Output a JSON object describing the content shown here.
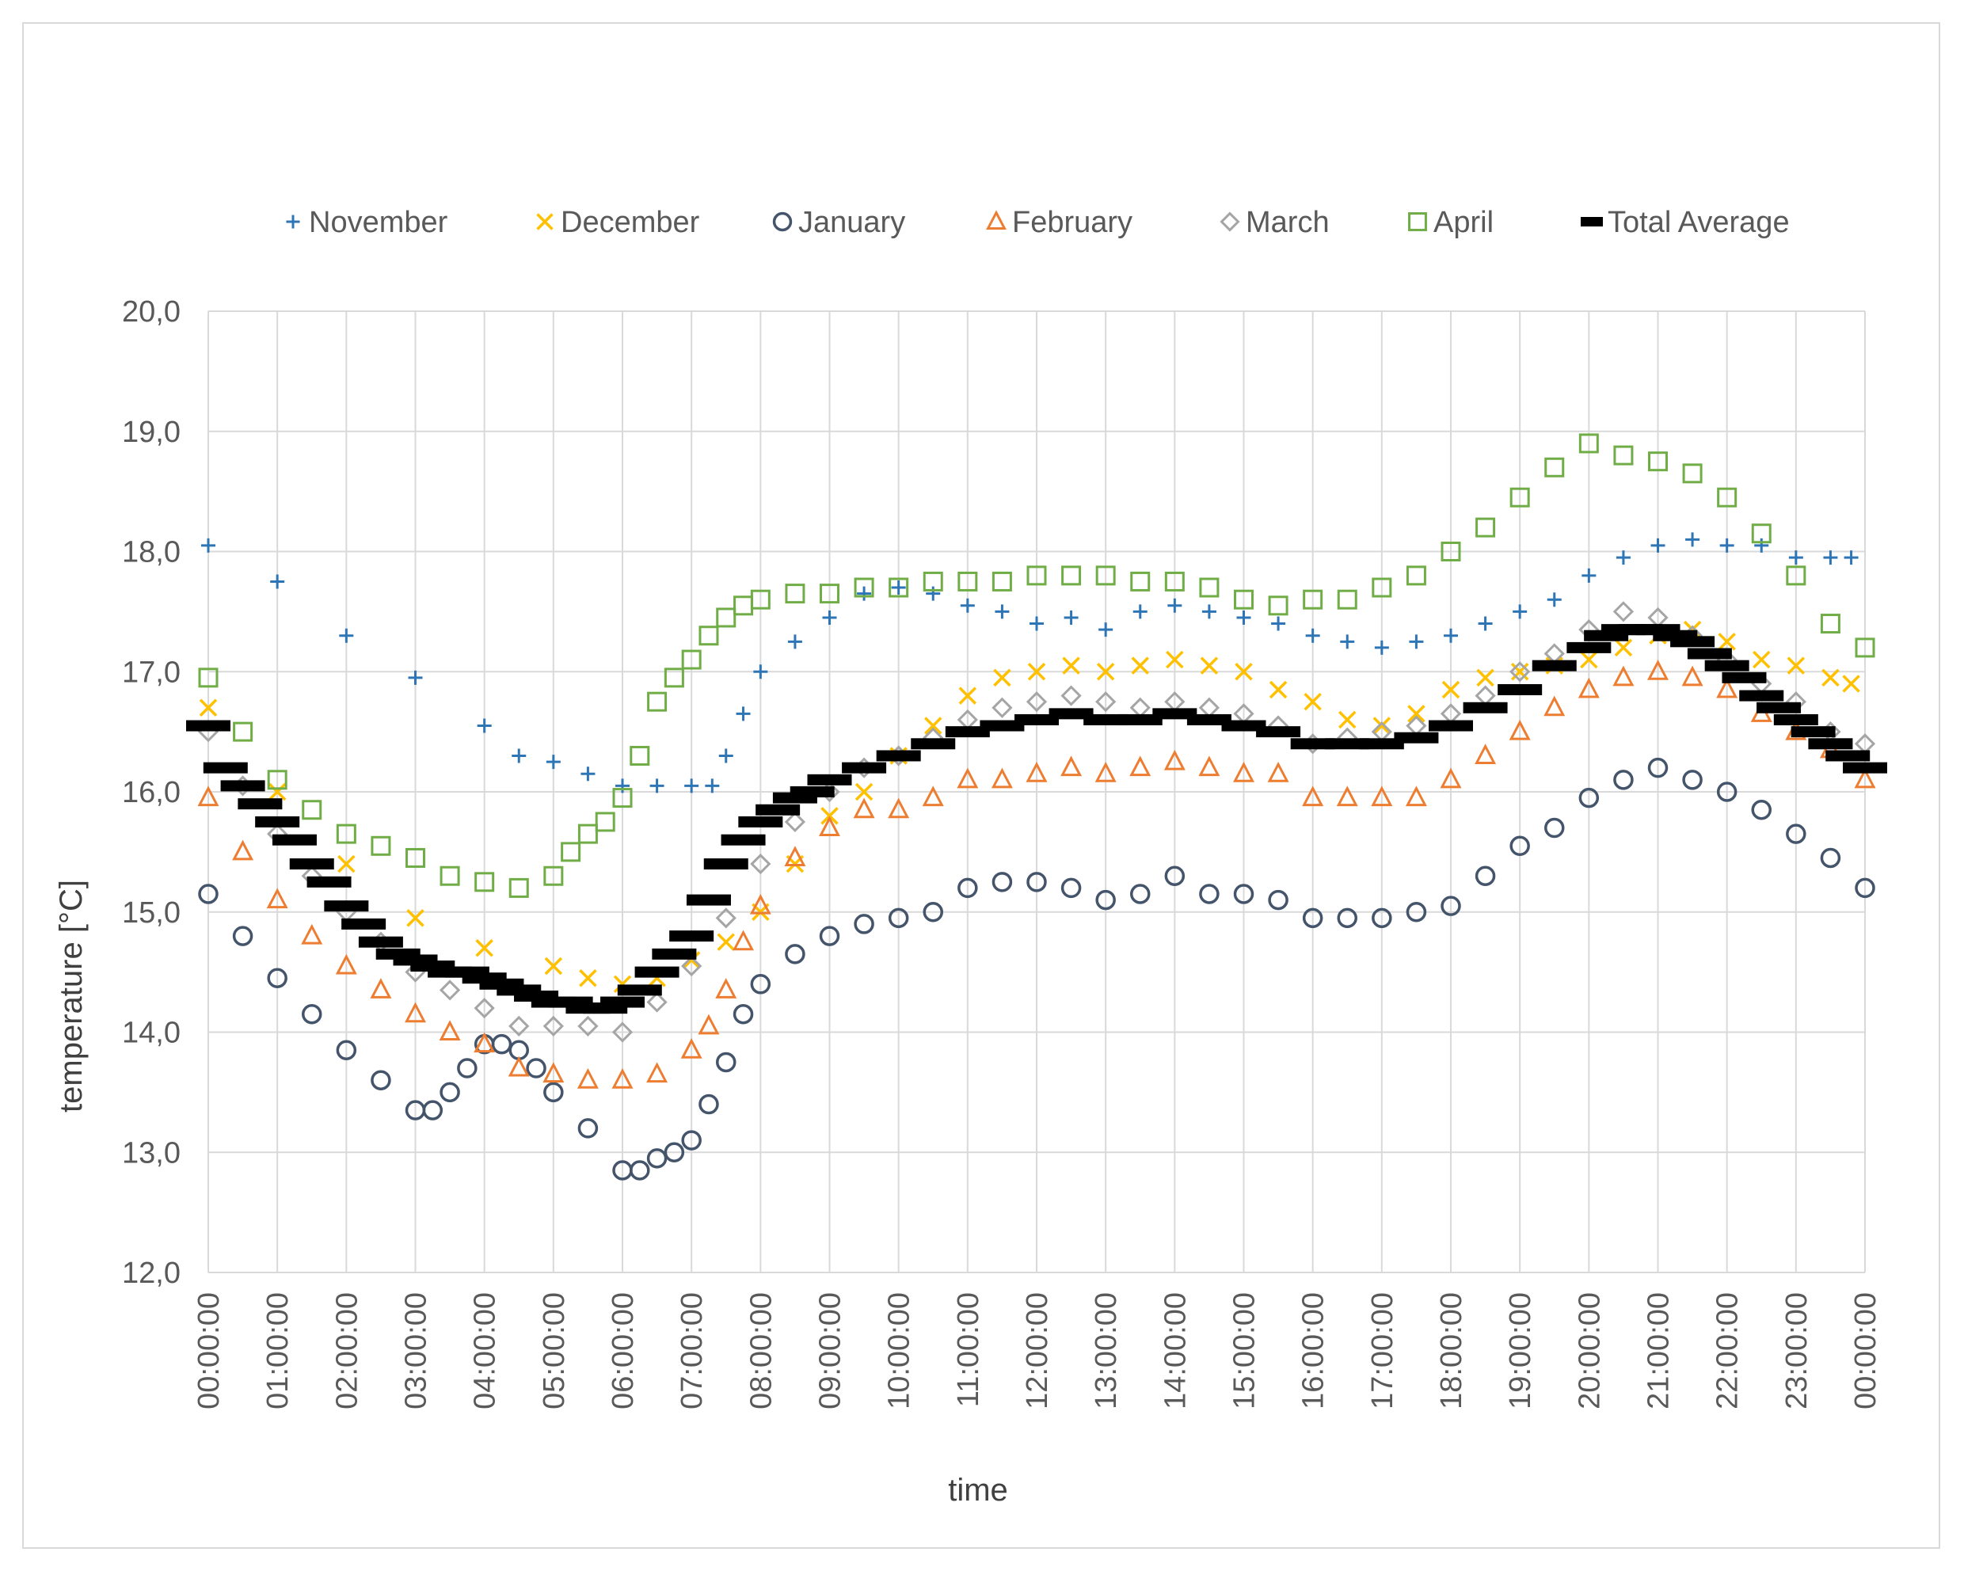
{
  "chart_data": {
    "type": "scatter",
    "title": "",
    "xlabel": "time",
    "ylabel": "temperature [°C]",
    "ylim": [
      12.0,
      20.0
    ],
    "ytick_step": 1.0,
    "xlim_hours": [
      0,
      24
    ],
    "x_tick_labels": [
      "00:00:00",
      "01:00:00",
      "02:00:00",
      "03:00:00",
      "04:00:00",
      "05:00:00",
      "06:00:00",
      "07:00:00",
      "08:00:00",
      "09:00:00",
      "10:00:00",
      "11:00:00",
      "12:00:00",
      "13:00:00",
      "14:00:00",
      "15:00:00",
      "16:00:00",
      "17:00:00",
      "18:00:00",
      "19:00:00",
      "20:00:00",
      "21:00:00",
      "22:00:00",
      "23:00:00",
      "00:00:00"
    ],
    "y_tick_labels": [
      "12,0",
      "13,0",
      "14,0",
      "15,0",
      "16,0",
      "17,0",
      "18,0",
      "19,0",
      "20,0"
    ],
    "grid": true,
    "legend_position": "top",
    "series": [
      {
        "name": "November",
        "marker": "plus",
        "color": "#2e75b6",
        "x": [
          0,
          1,
          2,
          3,
          4,
          4.5,
          5,
          5.5,
          6,
          6.5,
          7,
          7.3,
          7.5,
          7.75,
          8,
          8.5,
          9,
          9.5,
          10,
          10.5,
          11,
          11.5,
          12,
          12.5,
          13,
          13.5,
          14,
          14.5,
          15,
          15.5,
          16,
          16.5,
          17,
          17.5,
          18,
          18.5,
          19,
          19.5,
          20,
          20.5,
          21,
          21.5,
          22,
          22.5,
          23,
          23.5,
          23.8
        ],
        "y": [
          18.05,
          17.75,
          17.3,
          16.95,
          16.55,
          16.3,
          16.25,
          16.15,
          16.05,
          16.05,
          16.05,
          16.05,
          16.3,
          16.65,
          17.0,
          17.25,
          17.45,
          17.65,
          17.7,
          17.65,
          17.55,
          17.5,
          17.4,
          17.45,
          17.35,
          17.5,
          17.55,
          17.5,
          17.45,
          17.4,
          17.3,
          17.25,
          17.2,
          17.25,
          17.3,
          17.4,
          17.5,
          17.6,
          17.8,
          17.95,
          18.05,
          18.1,
          18.05,
          18.05,
          17.95,
          17.95,
          17.95
        ]
      },
      {
        "name": "December",
        "marker": "x",
        "color": "#ffc000",
        "x": [
          0,
          1,
          2,
          3,
          4,
          5,
          5.5,
          6,
          6.5,
          7,
          7.5,
          8,
          8.5,
          9,
          9.5,
          10,
          10.5,
          11,
          11.5,
          12,
          12.5,
          13,
          13.5,
          14,
          14.5,
          15,
          15.5,
          16,
          16.5,
          17,
          17.5,
          18,
          18.5,
          19,
          19.5,
          20,
          20.5,
          21,
          21.5,
          22,
          22.5,
          23,
          23.5,
          23.8
        ],
        "y": [
          16.7,
          16.0,
          15.4,
          14.95,
          14.7,
          14.55,
          14.45,
          14.4,
          14.45,
          14.6,
          14.75,
          15.0,
          15.4,
          15.8,
          16.0,
          16.3,
          16.55,
          16.8,
          16.95,
          17.0,
          17.05,
          17.0,
          17.05,
          17.1,
          17.05,
          17.0,
          16.85,
          16.75,
          16.6,
          16.55,
          16.65,
          16.85,
          16.95,
          17.0,
          17.05,
          17.1,
          17.2,
          17.3,
          17.35,
          17.25,
          17.1,
          17.05,
          16.95,
          16.9
        ]
      },
      {
        "name": "January",
        "marker": "circle",
        "color": "#44546a",
        "x": [
          0,
          0.5,
          1,
          1.5,
          2,
          2.5,
          3,
          3.25,
          3.5,
          3.75,
          4,
          4.25,
          4.5,
          4.75,
          5,
          5.5,
          6,
          6.25,
          6.5,
          6.75,
          7,
          7.25,
          7.5,
          7.75,
          8,
          8.5,
          9,
          9.5,
          10,
          10.5,
          11,
          11.5,
          12,
          12.5,
          13,
          13.5,
          14,
          14.5,
          15,
          15.5,
          16,
          16.5,
          17,
          17.5,
          18,
          18.5,
          19,
          19.5,
          20,
          20.5,
          21,
          21.5,
          22,
          22.5,
          23,
          23.5,
          24
        ],
        "y": [
          15.15,
          14.8,
          14.45,
          14.15,
          13.85,
          13.6,
          13.35,
          13.35,
          13.5,
          13.7,
          13.9,
          13.9,
          13.85,
          13.7,
          13.5,
          13.2,
          12.85,
          12.85,
          12.95,
          13.0,
          13.1,
          13.4,
          13.75,
          14.15,
          14.4,
          14.65,
          14.8,
          14.9,
          14.95,
          15.0,
          15.2,
          15.25,
          15.25,
          15.2,
          15.1,
          15.15,
          15.3,
          15.15,
          15.15,
          15.1,
          14.95,
          14.95,
          14.95,
          15.0,
          15.05,
          15.3,
          15.55,
          15.7,
          15.95,
          16.1,
          16.2,
          16.1,
          16.0,
          15.85,
          15.65,
          15.45,
          15.2
        ]
      },
      {
        "name": "February",
        "marker": "triangle",
        "color": "#ed7d31",
        "x": [
          0,
          0.5,
          1,
          1.5,
          2,
          2.5,
          3,
          3.5,
          4,
          4.5,
          5,
          5.5,
          6,
          6.5,
          7,
          7.25,
          7.5,
          7.75,
          8,
          8.5,
          9,
          9.5,
          10,
          10.5,
          11,
          11.5,
          12,
          12.5,
          13,
          13.5,
          14,
          14.5,
          15,
          15.5,
          16,
          16.5,
          17,
          17.5,
          18,
          18.5,
          19,
          19.5,
          20,
          20.5,
          21,
          21.5,
          22,
          22.5,
          23,
          23.5,
          24
        ],
        "y": [
          15.95,
          15.5,
          15.1,
          14.8,
          14.55,
          14.35,
          14.15,
          14.0,
          13.9,
          13.7,
          13.65,
          13.6,
          13.6,
          13.65,
          13.85,
          14.05,
          14.35,
          14.75,
          15.05,
          15.45,
          15.7,
          15.85,
          15.85,
          15.95,
          16.1,
          16.1,
          16.15,
          16.2,
          16.15,
          16.2,
          16.25,
          16.2,
          16.15,
          16.15,
          15.95,
          15.95,
          15.95,
          15.95,
          16.1,
          16.3,
          16.5,
          16.7,
          16.85,
          16.95,
          17.0,
          16.95,
          16.85,
          16.65,
          16.5,
          16.35,
          16.1
        ]
      },
      {
        "name": "March",
        "marker": "diamond",
        "color": "#a5a5a5",
        "x": [
          0,
          0.5,
          1,
          1.5,
          2,
          2.5,
          3,
          3.5,
          4,
          4.5,
          5,
          5.5,
          6,
          6.5,
          7,
          7.5,
          8,
          8.5,
          9,
          9.5,
          10,
          10.5,
          11,
          11.5,
          12,
          12.5,
          13,
          13.5,
          14,
          14.5,
          15,
          15.5,
          16,
          16.5,
          17,
          17.5,
          18,
          18.5,
          19,
          19.5,
          20,
          20.5,
          21,
          21.5,
          22,
          22.5,
          23,
          23.5,
          24
        ],
        "y": [
          16.5,
          16.05,
          15.65,
          15.3,
          15.0,
          14.75,
          14.5,
          14.35,
          14.2,
          14.05,
          14.05,
          14.05,
          14.0,
          14.25,
          14.55,
          14.95,
          15.4,
          15.75,
          16.0,
          16.2,
          16.3,
          16.45,
          16.6,
          16.7,
          16.75,
          16.8,
          16.75,
          16.7,
          16.75,
          16.7,
          16.65,
          16.55,
          16.4,
          16.45,
          16.5,
          16.55,
          16.65,
          16.8,
          17.0,
          17.15,
          17.35,
          17.5,
          17.45,
          17.3,
          17.1,
          16.9,
          16.75,
          16.5,
          16.4
        ]
      },
      {
        "name": "April",
        "marker": "square",
        "color": "#70ad47",
        "x": [
          0,
          0.5,
          1,
          1.5,
          2,
          2.5,
          3,
          3.5,
          4,
          4.5,
          5,
          5.25,
          5.5,
          5.75,
          6,
          6.25,
          6.5,
          6.75,
          7,
          7.25,
          7.5,
          7.75,
          8,
          8.5,
          9,
          9.5,
          10,
          10.5,
          11,
          11.5,
          12,
          12.5,
          13,
          13.5,
          14,
          14.5,
          15,
          15.5,
          16,
          16.5,
          17,
          17.5,
          18,
          18.5,
          19,
          19.5,
          20,
          20.5,
          21,
          21.5,
          22,
          22.5,
          23,
          23.5,
          24
        ],
        "y": [
          16.95,
          16.5,
          16.1,
          15.85,
          15.65,
          15.55,
          15.45,
          15.3,
          15.25,
          15.2,
          15.3,
          15.5,
          15.65,
          15.75,
          15.95,
          16.3,
          16.75,
          16.95,
          17.1,
          17.3,
          17.45,
          17.55,
          17.6,
          17.65,
          17.65,
          17.7,
          17.7,
          17.75,
          17.75,
          17.75,
          17.8,
          17.8,
          17.8,
          17.75,
          17.75,
          17.7,
          17.6,
          17.55,
          17.6,
          17.6,
          17.7,
          17.8,
          18.0,
          18.2,
          18.45,
          18.7,
          18.9,
          18.8,
          18.75,
          18.65,
          18.45,
          18.15,
          17.8,
          17.4,
          17.2
        ]
      },
      {
        "name": "Total Average",
        "marker": "dash",
        "color": "#000000",
        "x": [
          0,
          0.25,
          0.5,
          0.75,
          1,
          1.25,
          1.5,
          1.75,
          2,
          2.25,
          2.5,
          2.75,
          3,
          3.25,
          3.5,
          3.75,
          4,
          4.25,
          4.5,
          4.75,
          5,
          5.25,
          5.5,
          5.75,
          6,
          6.25,
          6.5,
          6.75,
          7,
          7.25,
          7.5,
          7.75,
          8,
          8.25,
          8.5,
          8.75,
          9,
          9.5,
          10,
          10.5,
          11,
          11.5,
          12,
          12.5,
          13,
          13.5,
          14,
          14.5,
          15,
          15.5,
          16,
          16.5,
          17,
          17.5,
          18,
          18.5,
          19,
          19.5,
          20,
          20.25,
          20.5,
          20.75,
          21,
          21.25,
          21.5,
          21.75,
          22,
          22.25,
          22.5,
          22.75,
          23,
          23.25,
          23.5,
          23.75,
          24
        ],
        "y": [
          16.55,
          16.2,
          16.05,
          15.9,
          15.75,
          15.6,
          15.4,
          15.25,
          15.05,
          14.9,
          14.75,
          14.65,
          14.6,
          14.55,
          14.5,
          14.5,
          14.45,
          14.4,
          14.35,
          14.3,
          14.25,
          14.25,
          14.2,
          14.2,
          14.25,
          14.35,
          14.5,
          14.65,
          14.8,
          15.1,
          15.4,
          15.6,
          15.75,
          15.85,
          15.95,
          16.0,
          16.1,
          16.2,
          16.3,
          16.4,
          16.5,
          16.55,
          16.6,
          16.65,
          16.6,
          16.6,
          16.65,
          16.6,
          16.55,
          16.5,
          16.4,
          16.4,
          16.4,
          16.45,
          16.55,
          16.7,
          16.85,
          17.05,
          17.2,
          17.3,
          17.35,
          17.35,
          17.35,
          17.3,
          17.25,
          17.15,
          17.05,
          16.95,
          16.8,
          16.7,
          16.6,
          16.5,
          16.4,
          16.3,
          16.2
        ]
      }
    ]
  }
}
